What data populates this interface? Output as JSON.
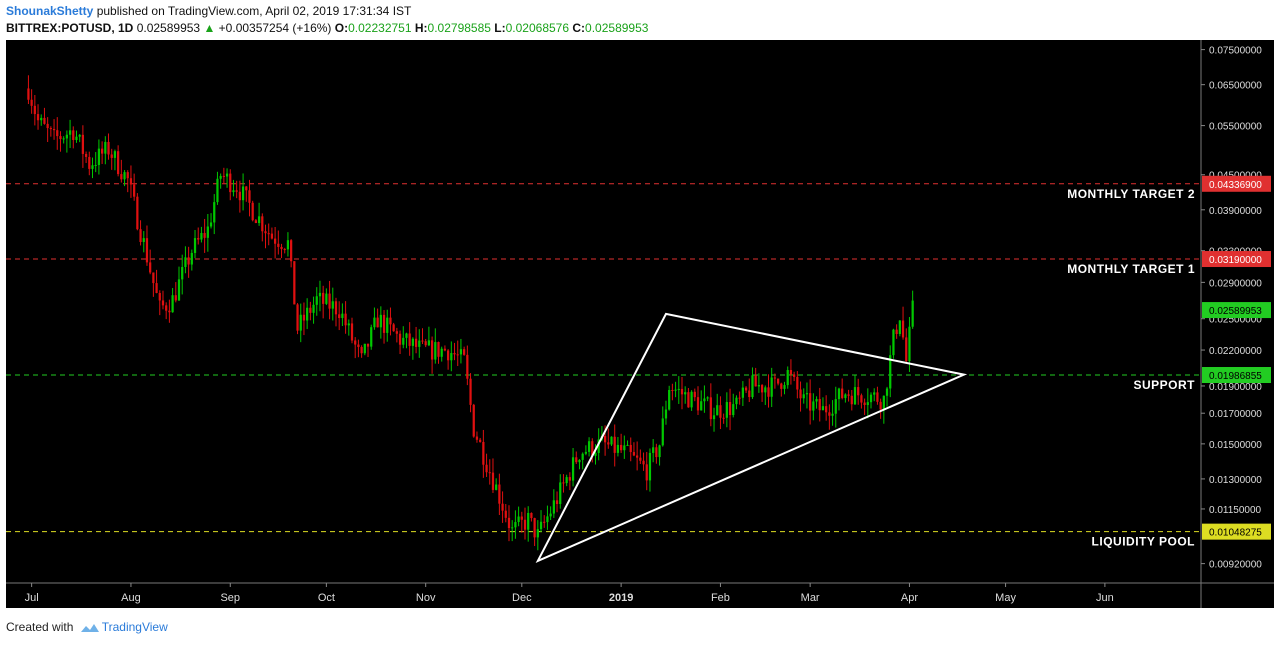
{
  "header": {
    "author": "ShounakShetty",
    "published_text": "published on TradingView.com, April 02, 2019 17:31:34 IST",
    "symbol": "BITTREX:POTUSD, 1D",
    "last_price": "0.02589953",
    "change_arrow": "▲",
    "change": "+0.00357254 (+16%)",
    "open_label": "O:",
    "open": "0.02232751",
    "high_label": "H:",
    "high": "0.02798585",
    "low_label": "L:",
    "low": "0.02068576",
    "close_label": "C:",
    "close": "0.02589953"
  },
  "footer": {
    "created_with": "Created with",
    "brand": "TradingView"
  },
  "colors": {
    "background": "#000000",
    "up_candle": "#00c800",
    "down_candle": "#e01010",
    "target_line": "#e03030",
    "support_line": "#22cc22",
    "pool_line": "#dddd22",
    "triangle": "#ffffff"
  },
  "chart_data": {
    "type": "candlestick",
    "symbol": "BITTREX:POTUSD",
    "interval": "1D",
    "y_axis_ticks": [
      "0.07500000",
      "0.06500000",
      "0.05500000",
      "0.04500000",
      "0.03900000",
      "0.03300000",
      "0.02900000",
      "0.02500000",
      "0.02200000",
      "0.01900000",
      "0.01700000",
      "0.01500000",
      "0.01300000",
      "0.01150000",
      "0.00920000"
    ],
    "x_axis_ticks": [
      "Jul",
      "Aug",
      "Sep",
      "Oct",
      "Nov",
      "Dec",
      "2019",
      "Feb",
      "Mar",
      "Apr",
      "May",
      "Jun"
    ],
    "y_scale": "log",
    "ylim": [
      0.0085,
      0.078
    ],
    "horizontal_levels": [
      {
        "label": "MONTHLY TARGET 2",
        "value": 0.043369,
        "price_tag": "0.04336900",
        "style": "dashed",
        "color": "#e03030"
      },
      {
        "label": "MONTHLY TARGET 1",
        "value": 0.0319,
        "price_tag": "0.03190000",
        "style": "dashed",
        "color": "#e03030"
      },
      {
        "label": "SUPPORT",
        "value": 0.01986855,
        "price_tag": "0.01986855",
        "style": "dashed",
        "color": "#22cc22"
      },
      {
        "label": "LIQUIDITY POOL",
        "value": 0.01048275,
        "price_tag": "0.01048275",
        "style": "dashed",
        "color": "#dddd22"
      }
    ],
    "current_price": {
      "value": 0.02589953,
      "price_tag": "0.02589953"
    },
    "triangle_pattern": [
      {
        "date": "2018-12-06",
        "price": 0.0093
      },
      {
        "date": "2019-01-15",
        "price": 0.0255
      },
      {
        "date": "2019-04-18",
        "price": 0.0199
      }
    ],
    "price_path": [
      [
        "2018-06-30",
        0.064
      ],
      [
        "2018-07-03",
        0.056
      ],
      [
        "2018-07-08",
        0.052
      ],
      [
        "2018-07-14",
        0.054
      ],
      [
        "2018-07-19",
        0.047
      ],
      [
        "2018-07-25",
        0.05
      ],
      [
        "2018-07-31",
        0.044
      ],
      [
        "2018-08-05",
        0.034
      ],
      [
        "2018-08-10",
        0.026
      ],
      [
        "2018-08-14",
        0.027
      ],
      [
        "2018-08-20",
        0.033
      ],
      [
        "2018-08-25",
        0.036
      ],
      [
        "2018-08-29",
        0.045
      ],
      [
        "2018-09-03",
        0.043
      ],
      [
        "2018-09-08",
        0.039
      ],
      [
        "2018-09-14",
        0.035
      ],
      [
        "2018-09-19",
        0.034
      ],
      [
        "2018-09-22",
        0.024
      ],
      [
        "2018-09-28",
        0.027
      ],
      [
        "2018-10-05",
        0.026
      ],
      [
        "2018-10-12",
        0.021
      ],
      [
        "2018-10-17",
        0.025
      ],
      [
        "2018-10-24",
        0.023
      ],
      [
        "2018-10-31",
        0.022
      ],
      [
        "2018-11-08",
        0.022
      ],
      [
        "2018-11-13",
        0.021
      ],
      [
        "2018-11-16",
        0.016
      ],
      [
        "2018-11-22",
        0.013
      ],
      [
        "2018-11-28",
        0.0105
      ],
      [
        "2018-12-03",
        0.011
      ],
      [
        "2018-12-06",
        0.0103
      ],
      [
        "2018-12-12",
        0.012
      ],
      [
        "2018-12-19",
        0.0145
      ],
      [
        "2018-12-26",
        0.015
      ],
      [
        "2019-01-02",
        0.0145
      ],
      [
        "2019-01-09",
        0.0135
      ],
      [
        "2019-01-13",
        0.015
      ],
      [
        "2019-01-16",
        0.019
      ],
      [
        "2019-01-23",
        0.018
      ],
      [
        "2019-01-30",
        0.0172
      ],
      [
        "2019-02-06",
        0.0175
      ],
      [
        "2019-02-11",
        0.019
      ],
      [
        "2019-02-18",
        0.019
      ],
      [
        "2019-02-22",
        0.02
      ],
      [
        "2019-02-27",
        0.0178
      ],
      [
        "2019-03-05",
        0.0172
      ],
      [
        "2019-03-12",
        0.0185
      ],
      [
        "2019-03-19",
        0.0183
      ],
      [
        "2019-03-24",
        0.018
      ],
      [
        "2019-03-27",
        0.023
      ],
      [
        "2019-03-29",
        0.0255
      ],
      [
        "2019-03-31",
        0.021
      ],
      [
        "2019-04-02",
        0.0259
      ]
    ]
  }
}
